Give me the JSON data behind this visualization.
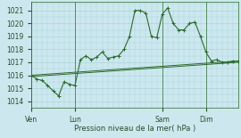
{
  "background_color": "#cce8ee",
  "grid_color": "#aad4db",
  "line_color": "#2d6a2d",
  "text_color": "#2d4a2d",
  "xlabel": "Pression niveau de la mer( hPa )",
  "ylim": [
    1013.5,
    1021.7
  ],
  "yticks": [
    1014,
    1015,
    1016,
    1017,
    1018,
    1019,
    1020,
    1021
  ],
  "xtick_labels": [
    "Ven",
    "Lun",
    "Sam",
    "Dim"
  ],
  "xtick_positions": [
    0,
    16,
    48,
    64
  ],
  "vline_positions": [
    0,
    16,
    48,
    64
  ],
  "xlim": [
    0,
    76
  ],
  "series1_x": [
    0,
    76
  ],
  "series1_y": [
    1015.9,
    1017.0
  ],
  "series2_x": [
    0,
    76
  ],
  "series2_y": [
    1016.0,
    1017.1
  ],
  "jagged_x": [
    0,
    2,
    4,
    6,
    8,
    10,
    12,
    14,
    16,
    18,
    20,
    22,
    24,
    26,
    28,
    30,
    32,
    34,
    36,
    38,
    40,
    42,
    44,
    46,
    48,
    50,
    52,
    54,
    56,
    58,
    60,
    62,
    64,
    66,
    68,
    70,
    72,
    74,
    76
  ],
  "jagged_y": [
    1016.0,
    1015.7,
    1015.6,
    1015.2,
    1014.8,
    1014.4,
    1015.5,
    1015.3,
    1015.2,
    1017.2,
    1017.5,
    1017.2,
    1017.4,
    1017.8,
    1017.3,
    1017.4,
    1017.5,
    1018.0,
    1019.0,
    1021.0,
    1021.0,
    1020.8,
    1019.0,
    1018.9,
    1020.7,
    1021.2,
    1020.0,
    1019.5,
    1019.5,
    1020.0,
    1020.1,
    1019.0,
    1017.8,
    1017.1,
    1017.2,
    1017.0,
    1017.0,
    1017.1,
    1017.1
  ]
}
